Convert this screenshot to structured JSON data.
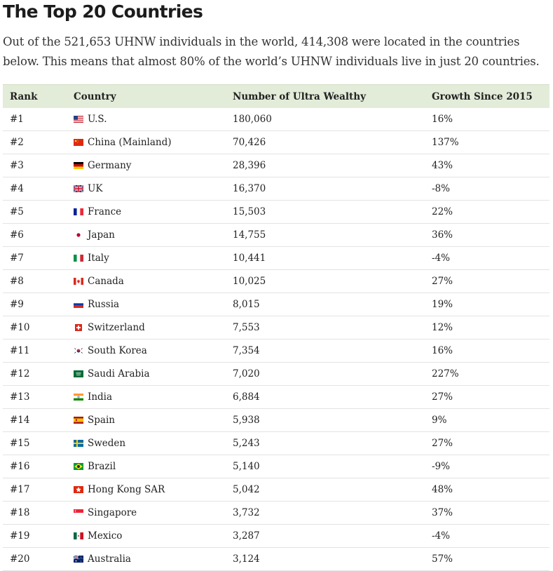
{
  "title": "The Top 20 Countries",
  "intro": "Out of the 521,653 UHNW individuals in the world, 414,308 were located in the countries below. This means that almost 80% of the world’s UHNW individuals live in just 20 countries.",
  "columns": [
    "Rank",
    "Country",
    "Number of Ultra Wealthy",
    "Growth Since 2015"
  ],
  "rows": [
    {
      "rank": "#1",
      "country": "U.S.",
      "flag": "us-flag-icon",
      "number": "180,060",
      "growth": "16%"
    },
    {
      "rank": "#2",
      "country": "China (Mainland)",
      "flag": "china-flag-icon",
      "number": "70,426",
      "growth": "137%"
    },
    {
      "rank": "#3",
      "country": "Germany",
      "flag": "germany-flag-icon",
      "number": "28,396",
      "growth": "43%"
    },
    {
      "rank": "#4",
      "country": "UK",
      "flag": "uk-flag-icon",
      "number": "16,370",
      "growth": "-8%"
    },
    {
      "rank": "#5",
      "country": "France",
      "flag": "france-flag-icon",
      "number": "15,503",
      "growth": "22%"
    },
    {
      "rank": "#6",
      "country": "Japan",
      "flag": "japan-flag-icon",
      "number": "14,755",
      "growth": "36%"
    },
    {
      "rank": "#7",
      "country": "Italy",
      "flag": "italy-flag-icon",
      "number": "10,441",
      "growth": "-4%"
    },
    {
      "rank": "#8",
      "country": "Canada",
      "flag": "canada-flag-icon",
      "number": "10,025",
      "growth": "27%"
    },
    {
      "rank": "#9",
      "country": "Russia",
      "flag": "russia-flag-icon",
      "number": "8,015",
      "growth": "19%"
    },
    {
      "rank": "#10",
      "country": "Switzerland",
      "flag": "switzerland-flag-icon",
      "number": "7,553",
      "growth": "12%"
    },
    {
      "rank": "#11",
      "country": "South Korea",
      "flag": "south-korea-flag-icon",
      "number": "7,354",
      "growth": "16%"
    },
    {
      "rank": "#12",
      "country": "Saudi Arabia",
      "flag": "saudi-arabia-flag-icon",
      "number": "7,020",
      "growth": "227%"
    },
    {
      "rank": "#13",
      "country": "India",
      "flag": "india-flag-icon",
      "number": "6,884",
      "growth": "27%"
    },
    {
      "rank": "#14",
      "country": "Spain",
      "flag": "spain-flag-icon",
      "number": "5,938",
      "growth": "9%"
    },
    {
      "rank": "#15",
      "country": "Sweden",
      "flag": "sweden-flag-icon",
      "number": "5,243",
      "growth": "27%"
    },
    {
      "rank": "#16",
      "country": "Brazil",
      "flag": "brazil-flag-icon",
      "number": "5,140",
      "growth": "-9%"
    },
    {
      "rank": "#17",
      "country": "Hong Kong SAR",
      "flag": "hong-kong-flag-icon",
      "number": "5,042",
      "growth": "48%"
    },
    {
      "rank": "#18",
      "country": "Singapore",
      "flag": "singapore-flag-icon",
      "number": "3,732",
      "growth": "37%"
    },
    {
      "rank": "#19",
      "country": "Mexico",
      "flag": "mexico-flag-icon",
      "number": "3,287",
      "growth": "-4%"
    },
    {
      "rank": "#20",
      "country": "Australia",
      "flag": "australia-flag-icon",
      "number": "3,124",
      "growth": "57%"
    }
  ],
  "colors": {
    "header_bg": "#e3ecd9",
    "row_border": "#e3e3e3",
    "text": "#222222"
  }
}
